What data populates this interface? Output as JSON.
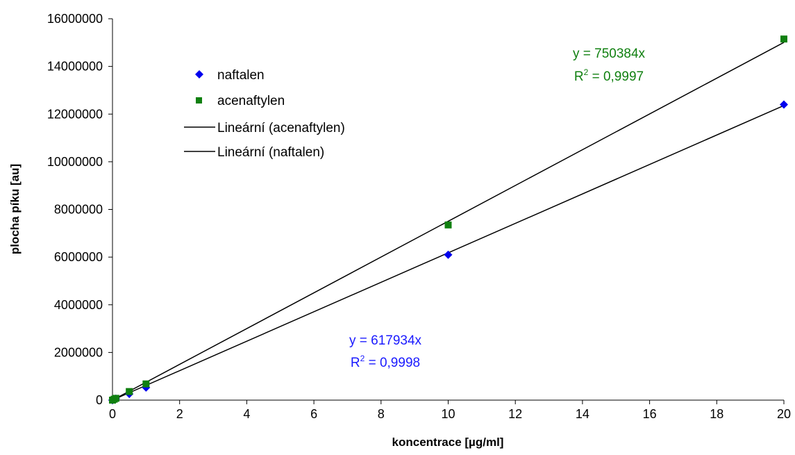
{
  "chart_data": {
    "type": "scatter",
    "xlabel": "koncentrace [µg/ml]",
    "ylabel": "plocha píku [au]",
    "xlim": [
      0,
      20
    ],
    "ylim": [
      0,
      16000000
    ],
    "xticks": [
      "0",
      "2",
      "4",
      "6",
      "8",
      "10",
      "12",
      "14",
      "16",
      "18",
      "20"
    ],
    "yticks": [
      "0",
      "2000000",
      "4000000",
      "6000000",
      "8000000",
      "10000000",
      "12000000",
      "14000000",
      "16000000"
    ],
    "grid": false,
    "legend_position": "top-left",
    "series": [
      {
        "name": "naftalen",
        "marker": "diamond",
        "color": "#0000ee",
        "points": [
          [
            0,
            0
          ],
          [
            0.05,
            31000
          ],
          [
            0.1,
            62000
          ],
          [
            0.5,
            260000
          ],
          [
            1,
            530000
          ],
          [
            10,
            6100000
          ],
          [
            20,
            12400000
          ]
        ]
      },
      {
        "name": "acenaftylen",
        "marker": "square",
        "color": "#108010",
        "points": [
          [
            0,
            0
          ],
          [
            0.05,
            38000
          ],
          [
            0.1,
            75000
          ],
          [
            0.5,
            360000
          ],
          [
            1,
            680000
          ],
          [
            10,
            7350000
          ],
          [
            20,
            15150000
          ]
        ]
      }
    ],
    "trendlines": [
      {
        "name": "Lineární (acenaftylen)",
        "slope": 750384,
        "color": "#000000",
        "equation": "y = 750384x",
        "r2_label": "R",
        "r2_sup": "2",
        "r2_value": " = 0,9997",
        "text_color": "#108010"
      },
      {
        "name": "Lineární (naftalen)",
        "slope": 617934,
        "color": "#000000",
        "equation": "y = 617934x",
        "r2_label": "R",
        "r2_sup": "2",
        "r2_value": " = 0,9998",
        "text_color": "#1a1aff"
      }
    ]
  }
}
